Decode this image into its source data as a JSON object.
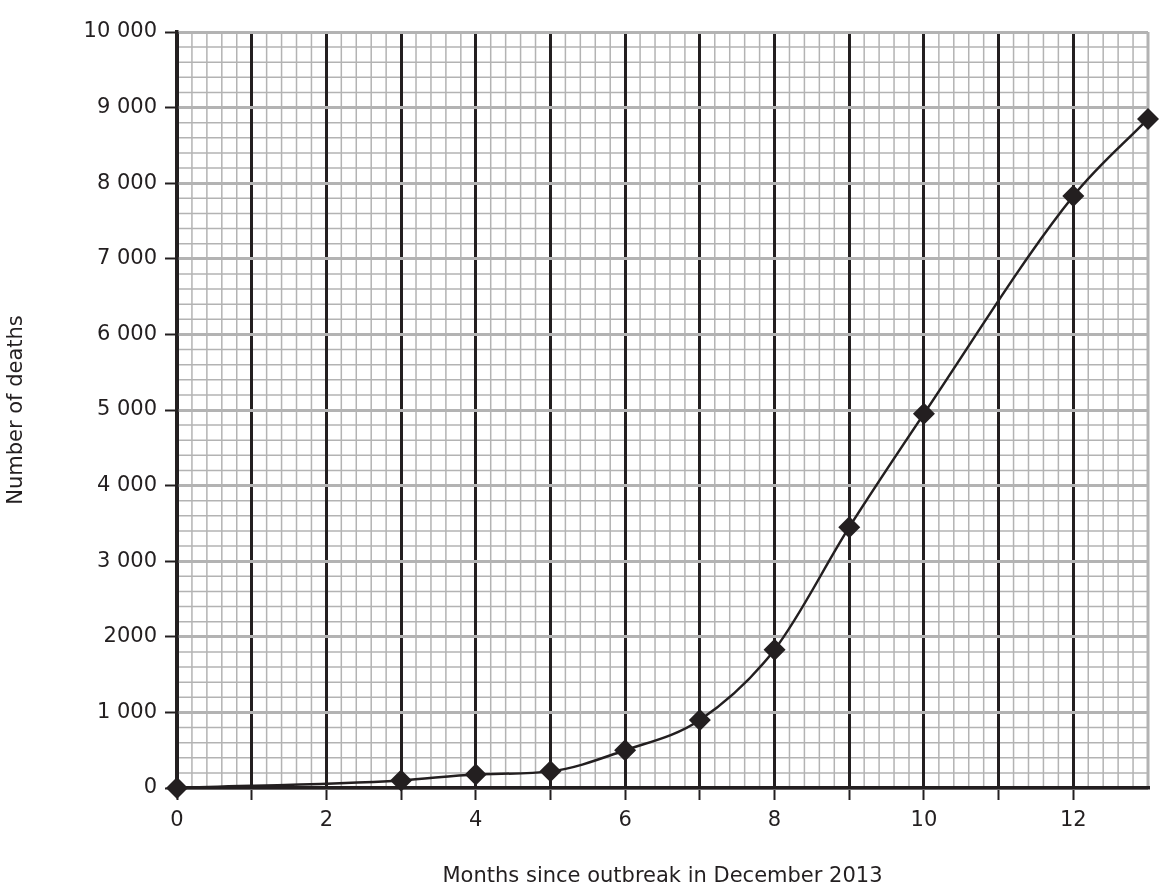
{
  "chart_data": {
    "type": "line",
    "xlabel": "Months since outbreak in December 2013",
    "ylabel": "Number of deaths",
    "x": [
      0,
      3,
      4,
      5,
      6,
      7,
      8,
      9,
      10,
      12,
      13
    ],
    "series": [
      {
        "color": "#231f20",
        "values": [
          0,
          100,
          180,
          220,
          500,
          900,
          1830,
          3450,
          4950,
          7830,
          8850
        ]
      }
    ],
    "xlim": [
      0,
      13
    ],
    "xticks": [
      0,
      {
        "value": 1,
        "label": null
      },
      2,
      {
        "value": 3,
        "label": null
      },
      4,
      {
        "value": 5,
        "label": null
      },
      6,
      {
        "value": 7,
        "label": null
      },
      8,
      {
        "value": 9,
        "label": null
      },
      10,
      {
        "value": 11,
        "label": null
      },
      12
    ],
    "ylim": [
      0,
      10000
    ],
    "yticks": [
      0,
      {
        "value": 1000,
        "label": "1 000"
      },
      2000,
      {
        "value": 3000,
        "label": "3 000"
      },
      {
        "value": 4000,
        "label": "4 000"
      },
      {
        "value": 5000,
        "label": "5 000"
      },
      {
        "value": 6000,
        "label": "6 000"
      },
      {
        "value": 7000,
        "label": "7 000"
      },
      {
        "value": 8000,
        "label": "8 000"
      },
      {
        "value": 9000,
        "label": "9 000"
      },
      {
        "value": 10000,
        "label": "10 000"
      }
    ],
    "grid": true,
    "marker": "diamond",
    "line_style": "solid"
  }
}
